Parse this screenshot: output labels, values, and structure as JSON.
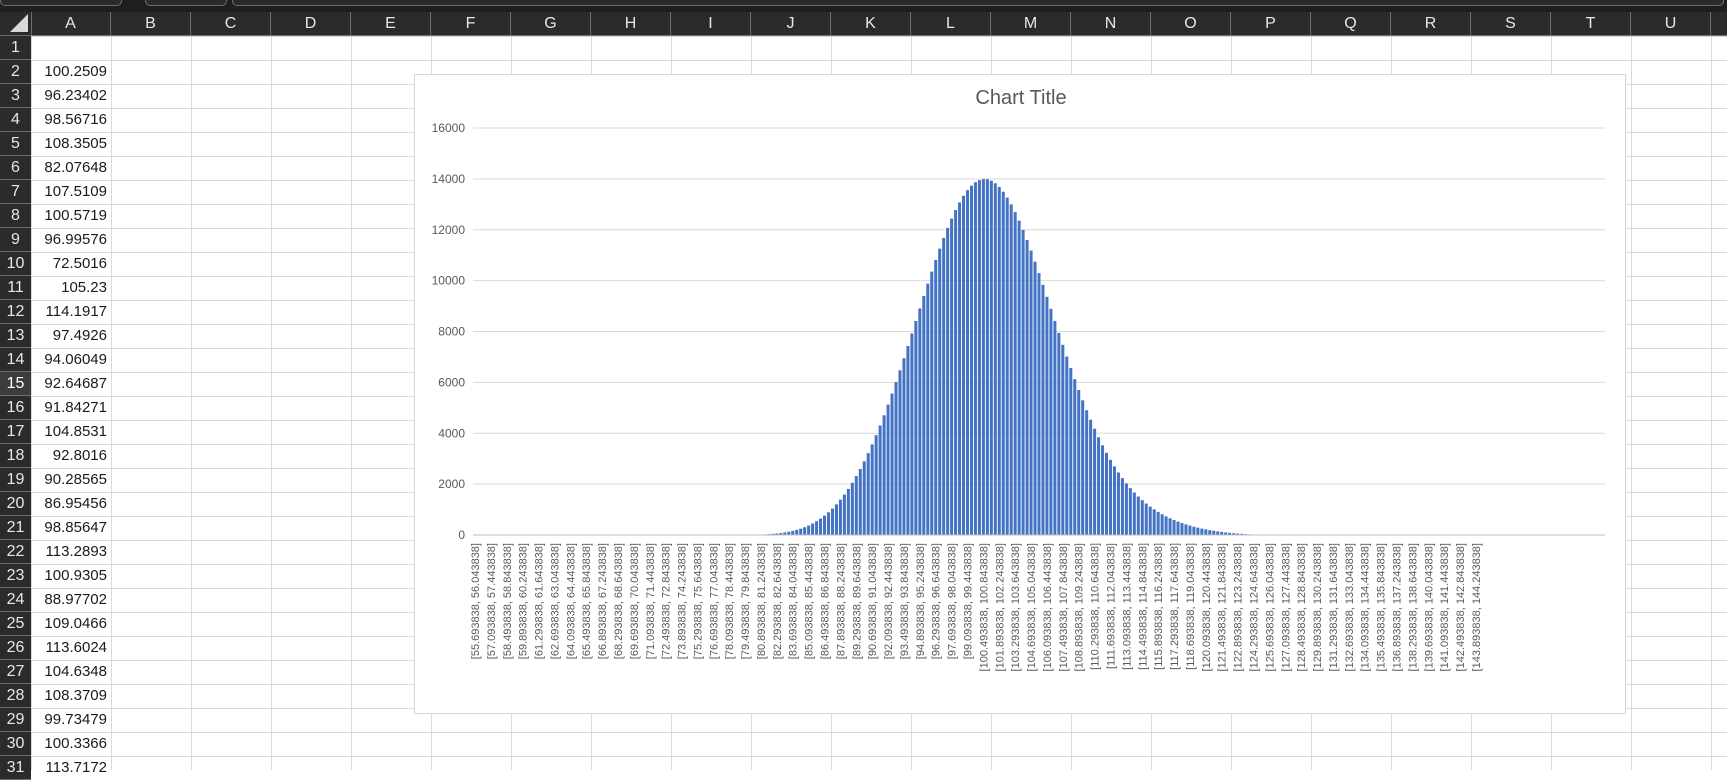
{
  "spreadsheet": {
    "columns": [
      "A",
      "B",
      "C",
      "D",
      "E",
      "F",
      "G",
      "H",
      "I",
      "J",
      "K",
      "L",
      "M",
      "N",
      "O",
      "P",
      "Q",
      "R",
      "S",
      "T",
      "U"
    ],
    "rows": [
      "1",
      "2",
      "3",
      "4",
      "5",
      "6",
      "7",
      "8",
      "9",
      "10",
      "11",
      "12",
      "13",
      "14",
      "15",
      "16",
      "17",
      "18",
      "19",
      "20",
      "21",
      "22",
      "23",
      "24",
      "25",
      "26",
      "27",
      "28",
      "29",
      "30",
      "31"
    ],
    "active_row": "15",
    "column_a_values": [
      "",
      "100.2509",
      "96.23402",
      "98.56716",
      "108.3505",
      "82.07648",
      "107.5109",
      "100.5719",
      "96.99576",
      "72.5016",
      "105.23",
      "114.1917",
      "97.4926",
      "94.06049",
      "92.64687",
      "91.84271",
      "104.8531",
      "92.8016",
      "90.28565",
      "86.95456",
      "98.85647",
      "113.2893",
      "100.9305",
      "88.97702",
      "109.0466",
      "113.6024",
      "104.6348",
      "108.3709",
      "99.73479",
      "100.3366",
      "113.7172"
    ]
  },
  "chart_data": {
    "type": "bar",
    "title": "Chart Title",
    "bar_color": "#4472C4",
    "ylim": [
      0,
      16000
    ],
    "yticks": [
      "0",
      "2000",
      "4000",
      "6000",
      "8000",
      "10000",
      "12000",
      "14000",
      "16000"
    ],
    "grid": true,
    "category_labels": [
      "[55.693838, 56.043838]",
      "[57.093838, 57.443838]",
      "[58.493838, 58.843838]",
      "[59.893838, 60.243838]",
      "[61.293838, 61.643838]",
      "[62.693838, 63.043838]",
      "[64.093838, 64.443838]",
      "[65.493838, 65.843838]",
      "[66.893838, 67.243838]",
      "[68.293838, 68.643838]",
      "[69.693838, 70.043838]",
      "[71.093838, 71.443838]",
      "[72.493838, 72.843838]",
      "[73.893838, 74.243838]",
      "[75.293838, 75.643838]",
      "[76.693838, 77.043838]",
      "[78.093838, 78.443838]",
      "[79.493838, 79.843838]",
      "[80.893838, 81.243838]",
      "[82.293838, 82.643838]",
      "[83.693838, 84.043838]",
      "[85.093838, 85.443838]",
      "[86.493838, 86.843838]",
      "[87.893838, 88.243838]",
      "[89.293838, 89.643838]",
      "[90.693838, 91.043838]",
      "[92.093838, 92.443838]",
      "[93.493838, 93.843838]",
      "[94.893838, 95.243838]",
      "[96.293838, 96.643838]",
      "[97.693838, 98.043838]",
      "[99.093838, 99.443838]",
      "[100.493838, 100.843838]",
      "[101.893838, 102.243838]",
      "[103.293838, 103.643838]",
      "[104.693838, 105.043838]",
      "[106.093838, 106.443838]",
      "[107.493838, 107.843838]",
      "[108.893838, 109.243838]",
      "[110.293838, 110.643838]",
      "[111.693838, 112.043838]",
      "[113.093838, 113.443838]",
      "[114.493838, 114.843838]",
      "[115.893838, 116.243838]",
      "[117.293838, 117.643838]",
      "[118.693838, 119.043838]",
      "[120.093838, 120.443838]",
      "[121.493838, 121.843838]",
      "[122.893838, 123.243838]",
      "[124.293838, 124.643838]",
      "[125.693838, 126.043838]",
      "[127.093838, 127.443838]",
      "[128.493838, 128.843838]",
      "[129.893838, 130.243838]",
      "[131.293838, 131.643838]",
      "[132.693838, 133.043838]",
      "[134.093838, 134.443838]",
      "[135.493838, 135.843838]",
      "[136.893838, 137.243838]",
      "[138.293838, 138.643838]",
      "[139.693838, 140.043838]",
      "[141.093838, 141.443838]",
      "[142.493838, 142.843838]",
      "[143.893838, 144.243838]"
    ],
    "bin_start": 55.693838,
    "bin_width": 0.35,
    "bin_count": 252,
    "values": [
      0,
      0,
      0,
      0,
      0,
      0,
      0,
      0,
      0,
      0,
      0,
      0,
      0,
      0,
      0,
      0,
      0,
      0,
      0,
      0,
      0,
      0,
      0,
      0,
      0,
      0,
      0,
      0,
      0,
      0,
      0,
      0,
      0,
      0,
      0,
      0,
      0,
      0,
      0,
      0,
      0,
      0,
      0,
      0,
      0,
      0,
      0,
      0,
      0,
      0,
      0,
      0,
      0,
      0,
      0,
      0,
      0,
      0,
      0,
      0,
      0,
      0,
      0,
      0,
      0,
      0,
      0,
      0,
      0,
      0,
      8,
      12,
      17,
      24,
      33,
      45,
      60,
      78,
      100,
      127,
      160,
      200,
      248,
      305,
      372,
      450,
      540,
      643,
      760,
      892,
      1040,
      1205,
      1388,
      1590,
      1811,
      2052,
      2313,
      2595,
      2897,
      3219,
      3562,
      3925,
      4307,
      4708,
      5126,
      5561,
      6011,
      6474,
      6948,
      7431,
      7920,
      8413,
      8906,
      9396,
      9880,
      10354,
      10814,
      11256,
      11677,
      12073,
      12440,
      12775,
      13074,
      13336,
      13556,
      13733,
      13866,
      13952,
      13992,
      13985,
      13930,
      13829,
      13684,
      13496,
      13266,
      12998,
      12694,
      12357,
      11990,
      11597,
      11181,
      10746,
      10296,
      9835,
      9365,
      8891,
      8416,
      7943,
      7475,
      7015,
      6565,
      6127,
      5703,
      5295,
      4904,
      4531,
      4177,
      3842,
      3526,
      3230,
      2953,
      2696,
      2456,
      2235,
      2031,
      1843,
      1671,
      1513,
      1369,
      1237,
      1117,
      1008,
      908,
      817,
      734,
      658,
      589,
      526,
      469,
      417,
      370,
      327,
      288,
      252,
      220,
      191,
      165,
      141,
      120,
      101,
      84,
      69,
      56,
      44,
      34,
      25,
      17,
      10,
      4,
      0,
      0,
      0,
      0,
      0,
      0,
      0,
      0,
      0,
      0,
      0,
      0,
      0,
      0,
      0,
      0,
      0,
      0,
      0,
      0,
      0,
      0,
      0,
      0,
      0,
      0,
      0,
      0,
      0,
      0,
      0,
      0,
      0,
      0,
      0,
      0,
      0,
      0,
      0,
      0,
      0,
      0,
      0,
      0,
      0,
      0,
      0,
      0,
      0,
      0,
      0,
      0,
      0,
      0,
      0,
      0,
      0,
      0,
      0,
      0,
      0,
      0,
      0,
      0,
      0,
      0,
      0,
      0,
      0,
      0,
      0,
      0,
      0,
      0,
      0,
      0,
      0,
      0,
      0,
      0,
      0,
      0,
      0,
      0,
      0,
      0
    ]
  }
}
